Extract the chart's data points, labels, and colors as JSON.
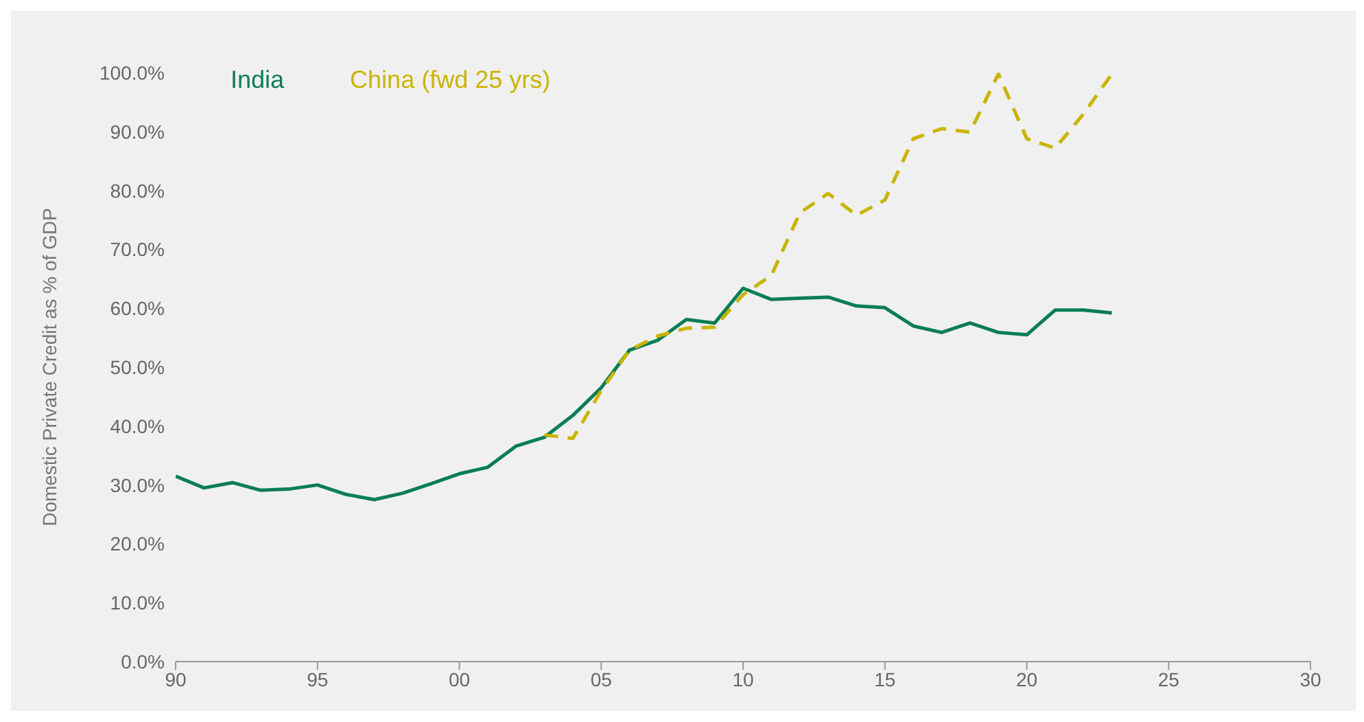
{
  "chart_data": {
    "type": "line",
    "ylabel": "Domestic Private Credit as % of GDP",
    "x": [
      1990,
      1991,
      1992,
      1993,
      1994,
      1995,
      1996,
      1997,
      1998,
      1999,
      2000,
      2001,
      2002,
      2003,
      2004,
      2005,
      2006,
      2007,
      2008,
      2009,
      2010,
      2011,
      2012,
      2013,
      2014,
      2015,
      2016,
      2017,
      2018,
      2019,
      2020,
      2021,
      2022,
      2023
    ],
    "series": [
      {
        "name": "India",
        "color": "#0b7d55",
        "line_style": "solid",
        "values": [
          31.5,
          29.5,
          30.4,
          29.1,
          29.3,
          30.0,
          28.4,
          27.5,
          28.6,
          30.2,
          31.9,
          33.0,
          36.6,
          38.1,
          41.8,
          46.5,
          52.9,
          54.6,
          58.1,
          57.5,
          63.4,
          61.5,
          61.7,
          61.9,
          60.4,
          60.1,
          57.0,
          55.9,
          57.5,
          55.9,
          55.5,
          59.7,
          59.7,
          59.2
        ]
      },
      {
        "name": "China (fwd 25 yrs)",
        "color": "#c9b400",
        "line_style": "dashed",
        "values": [
          null,
          null,
          null,
          null,
          null,
          null,
          null,
          null,
          null,
          null,
          null,
          null,
          null,
          38.5,
          37.9,
          46.0,
          52.9,
          55.3,
          56.6,
          56.8,
          62.3,
          65.6,
          76.2,
          79.5,
          75.8,
          78.4,
          88.8,
          90.5,
          89.9,
          99.8,
          88.8,
          87.2,
          93.0,
          99.8
        ]
      }
    ],
    "xlim": [
      1990,
      2030
    ],
    "xticks": [
      {
        "value": 1990,
        "label": "90"
      },
      {
        "value": 1995,
        "label": "95"
      },
      {
        "value": 2000,
        "label": "00"
      },
      {
        "value": 2005,
        "label": "05"
      },
      {
        "value": 2010,
        "label": "10"
      },
      {
        "value": 2015,
        "label": "15"
      },
      {
        "value": 2020,
        "label": "20"
      },
      {
        "value": 2025,
        "label": "25"
      },
      {
        "value": 2030,
        "label": "30"
      }
    ],
    "ylim": [
      0,
      100
    ],
    "yticks": [
      {
        "value": 0,
        "label": "0.0%"
      },
      {
        "value": 10,
        "label": "10.0%"
      },
      {
        "value": 20,
        "label": "20.0%"
      },
      {
        "value": 30,
        "label": "30.0%"
      },
      {
        "value": 40,
        "label": "40.0%"
      },
      {
        "value": 50,
        "label": "50.0%"
      },
      {
        "value": 60,
        "label": "60.0%"
      },
      {
        "value": 70,
        "label": "70.0%"
      },
      {
        "value": 80,
        "label": "80.0%"
      },
      {
        "value": 90,
        "label": "90.0%"
      },
      {
        "value": 100,
        "label": "100.0%"
      }
    ],
    "grid": false,
    "legend": "top left",
    "marker": "none"
  }
}
